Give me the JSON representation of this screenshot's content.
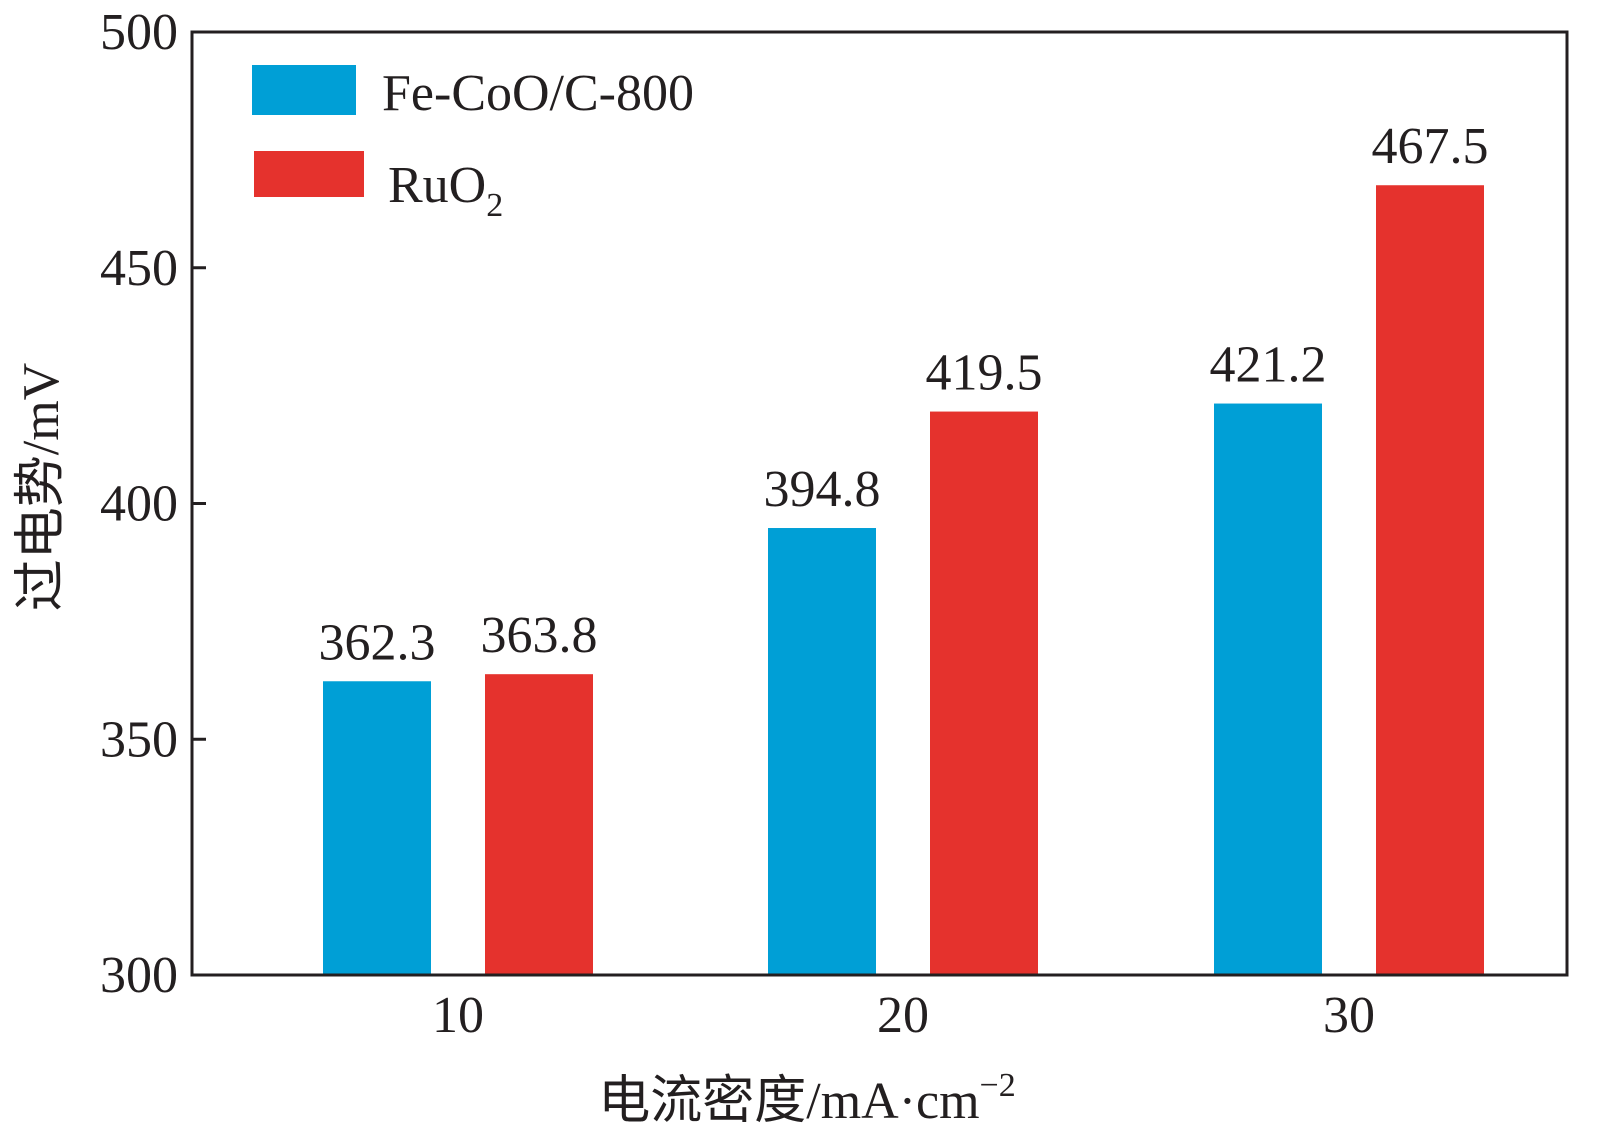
{
  "chart_data": {
    "type": "bar",
    "categories": [
      "10",
      "20",
      "30"
    ],
    "series": [
      {
        "name": "Fe-CoO/C-800",
        "color": "#009fd6",
        "values": [
          362.3,
          394.8,
          421.2
        ]
      },
      {
        "name": "RuO",
        "name_sub": "2",
        "color": "#e5322d",
        "values": [
          363.8,
          419.5,
          467.5
        ]
      }
    ],
    "data_labels": [
      [
        "362.3",
        "394.8",
        "421.2"
      ],
      [
        "363.8",
        "419.5",
        "467.5"
      ]
    ],
    "ylim": [
      300,
      500
    ],
    "yticks": [
      300,
      350,
      400,
      450,
      500
    ],
    "ytick_labels": [
      "300",
      "350",
      "400",
      "450",
      "500"
    ],
    "xlabel": "电流密度/mA·cm",
    "xlabel_sup": "−2",
    "ylabel": "过电势/mV",
    "grid": false,
    "legend_position": "top-left"
  }
}
